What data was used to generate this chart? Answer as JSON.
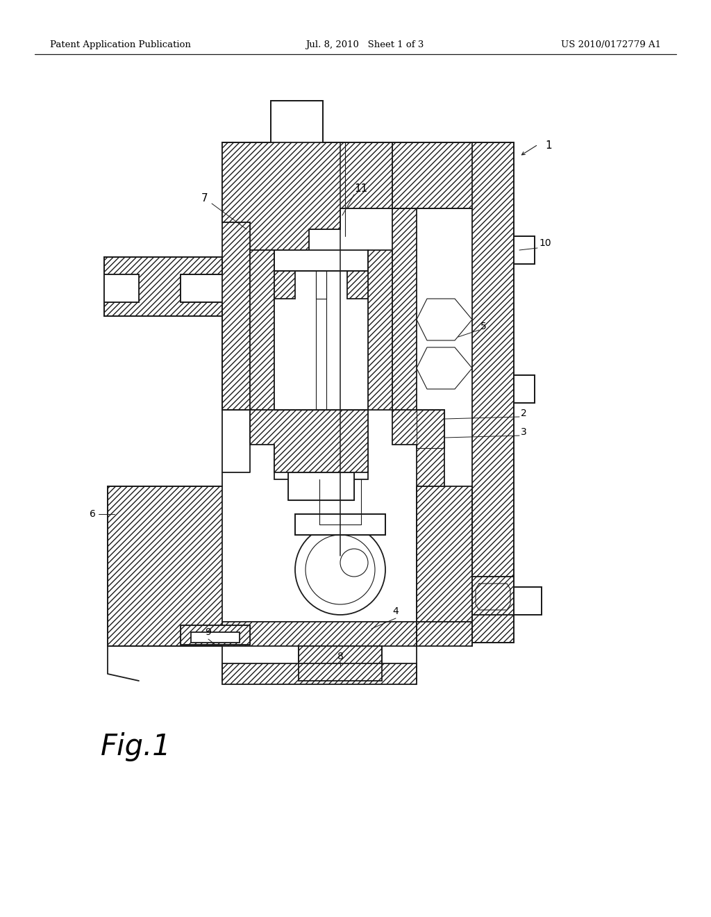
{
  "bg_color": "#ffffff",
  "line_color": "#1a1a1a",
  "header_left": "Patent Application Publication",
  "header_mid": "Jul. 8, 2010   Sheet 1 of 3",
  "header_right": "US 2010/0172779 A1",
  "figure_label": "Fig.1",
  "figsize": [
    10.24,
    13.2
  ],
  "dpi": 100,
  "hatch_density": "////",
  "lw_main": 1.3,
  "lw_thin": 0.8,
  "lw_leader": 0.7
}
